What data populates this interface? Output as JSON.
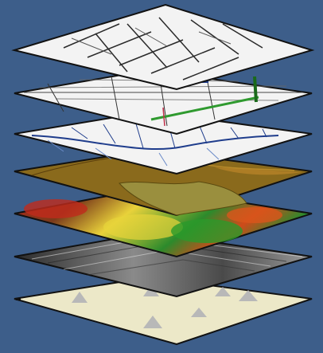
{
  "colors": {
    "background": "#3d5e8a",
    "layer_outline": "#111111",
    "road_ink": "#2a2a2a",
    "river_blue": "#1f3d8c",
    "pipeline_green": "#2f9a2f",
    "soil_brown": "#8a6a1c",
    "soil_olive": "#9a8f3e",
    "elevation_red": "#b8231a",
    "elevation_yellow": "#e9d23a",
    "elevation_green": "#2c8a2c",
    "aerial_gray": "#6a6a6a",
    "base_cream": "#ece8c8",
    "base_triangle": "#b8b8b8"
  },
  "layers": [
    {
      "name": "streets",
      "icon": "street-network-layer"
    },
    {
      "name": "utilities",
      "icon": "utility-network-layer"
    },
    {
      "name": "hydrology",
      "icon": "stream-network-layer"
    },
    {
      "name": "soils",
      "icon": "soil-polygons-layer"
    },
    {
      "name": "elevation",
      "icon": "elevation-raster-layer"
    },
    {
      "name": "imagery",
      "icon": "aerial-photo-layer"
    },
    {
      "name": "base",
      "icon": "survey-control-layer"
    }
  ]
}
